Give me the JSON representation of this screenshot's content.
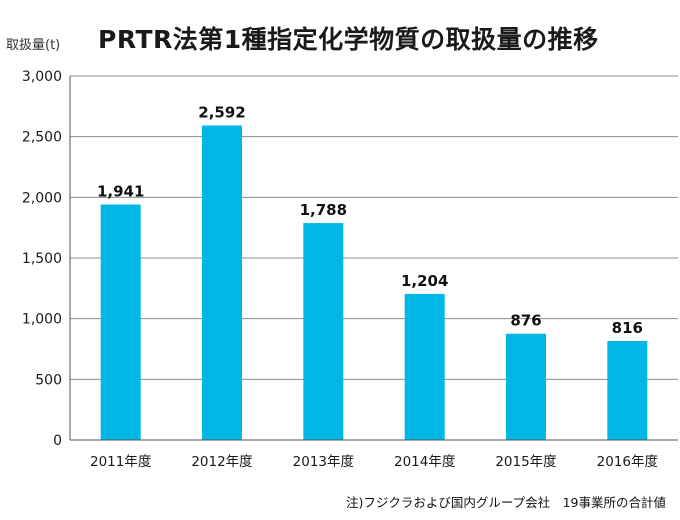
{
  "chart_data": {
    "type": "bar",
    "title": "PRTR法第1種指定化学物質の取扱量の推移",
    "ylabel": "取扱量(t)",
    "xlabel": "",
    "categories": [
      "2011年度",
      "2012年度",
      "2013年度",
      "2014年度",
      "2015年度",
      "2016年度"
    ],
    "values": [
      1941,
      2592,
      1788,
      1204,
      876,
      816
    ],
    "value_labels": [
      "1,941",
      "2,592",
      "1,788",
      "1,204",
      "876",
      "816"
    ],
    "ylim": [
      0,
      3000
    ],
    "yticks": [
      0,
      500,
      1000,
      1500,
      2000,
      2500,
      3000
    ],
    "ytick_labels": [
      "0",
      "500",
      "1,000",
      "1,500",
      "2,000",
      "2,500",
      "3,000"
    ],
    "grid": true,
    "bar_color": "#00b7e6",
    "grid_color": "#8c8c8c",
    "footnote": "注)フジクラおよび国内グループ会社　19事業所の合計値"
  }
}
